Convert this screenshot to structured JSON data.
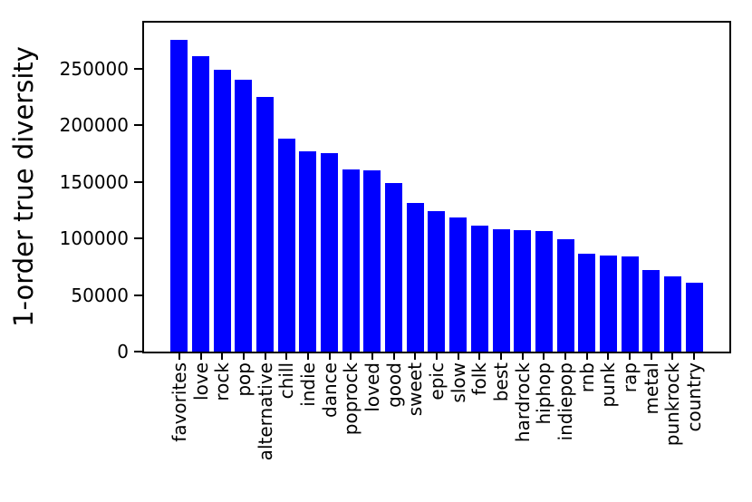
{
  "chart_data": {
    "type": "bar",
    "title": "",
    "xlabel": "",
    "ylabel": "1-order true diversity",
    "categories": [
      "favorites",
      "love",
      "rock",
      "pop",
      "alternative",
      "chill",
      "indie",
      "dance",
      "poprock",
      "loved",
      "good",
      "sweet",
      "epic",
      "slow",
      "folk",
      "best",
      "hardrock",
      "hiphop",
      "indiepop",
      "rnb",
      "punk",
      "rap",
      "metal",
      "punkrock",
      "country"
    ],
    "values": [
      275000,
      261000,
      249000,
      240000,
      225000,
      188000,
      177000,
      175000,
      161000,
      160000,
      149000,
      131000,
      124000,
      118000,
      111000,
      108000,
      107000,
      106000,
      99000,
      86000,
      85000,
      84000,
      72000,
      66000,
      61000
    ],
    "ytick_values": [
      0,
      50000,
      100000,
      150000,
      200000,
      250000
    ],
    "ytick_labels": [
      "0",
      "50000",
      "100000",
      "150000",
      "200000",
      "250000"
    ],
    "ylim": [
      0,
      290400
    ],
    "grid": false,
    "legend": "none",
    "bar_color": "#0000ff",
    "axis_color": "#000000",
    "background_color": "#ffffff"
  }
}
